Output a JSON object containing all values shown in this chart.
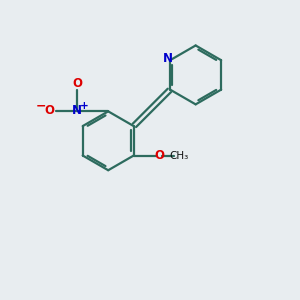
{
  "background_color": "#e8edf0",
  "bond_color": "#2d6b5e",
  "N_color": "#0000cc",
  "O_color": "#dd0000",
  "line_width": 1.6,
  "figsize": [
    3.0,
    3.0
  ],
  "dpi": 100,
  "xlim": [
    0,
    10
  ],
  "ylim": [
    0,
    10
  ]
}
